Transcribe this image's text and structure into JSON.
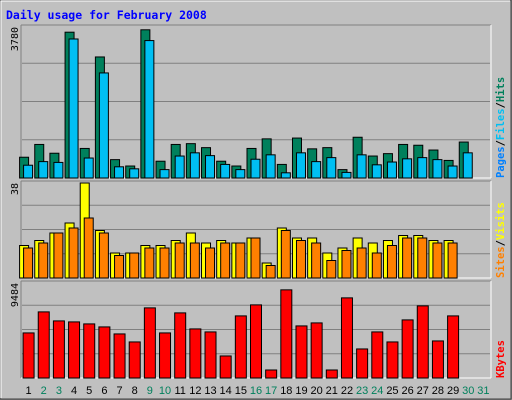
{
  "chart_data": [
    {
      "type": "bar",
      "title": "Daily usage for February 2008",
      "ymax_label": "3780",
      "ylim": [
        0,
        3780
      ],
      "categories": [
        "1",
        "2",
        "3",
        "4",
        "5",
        "6",
        "7",
        "8",
        "9",
        "10",
        "11",
        "12",
        "13",
        "14",
        "15",
        "16",
        "17",
        "18",
        "19",
        "20",
        "21",
        "22",
        "23",
        "24",
        "25",
        "26",
        "27",
        "28",
        "29",
        "30",
        "31"
      ],
      "series": [
        {
          "name": "Hits",
          "color": "#00805c",
          "values": [
            520,
            840,
            620,
            3650,
            740,
            3030,
            460,
            300,
            3710,
            420,
            840,
            860,
            760,
            420,
            300,
            740,
            980,
            340,
            1000,
            730,
            760,
            210,
            1020,
            550,
            610,
            840,
            820,
            700,
            440,
            900,
            0
          ]
        },
        {
          "name": "Files",
          "color": "#00bff3",
          "values": [
            320,
            410,
            390,
            3480,
            500,
            2630,
            280,
            230,
            3440,
            210,
            550,
            630,
            560,
            340,
            210,
            470,
            580,
            130,
            630,
            410,
            510,
            140,
            580,
            330,
            400,
            480,
            510,
            460,
            300,
            630,
            0
          ]
        }
      ],
      "right_label": [
        "Pages",
        "Files",
        "Hits"
      ]
    },
    {
      "type": "bar",
      "ymax_label": "38",
      "ylim": [
        0,
        38
      ],
      "series": [
        {
          "name": "Visits",
          "color": "#ffff00",
          "values": [
            13,
            15,
            18,
            22,
            38,
            19,
            10,
            10,
            13,
            13,
            15,
            18,
            14,
            15,
            14,
            16,
            6,
            20,
            16,
            16,
            10,
            12,
            16,
            14,
            15,
            17,
            17,
            15,
            15,
            0,
            0
          ]
        },
        {
          "name": "Sites",
          "color": "#ff8000",
          "values": [
            12,
            14,
            18,
            20,
            24,
            18,
            9,
            10,
            12,
            12,
            14,
            14,
            12,
            14,
            14,
            16,
            5,
            19,
            15,
            14,
            7,
            11,
            12,
            10,
            13,
            16,
            16,
            14,
            14,
            0,
            0
          ]
        }
      ],
      "right_label": [
        "Sites",
        "Visits"
      ]
    },
    {
      "type": "bar",
      "ymax_label": "9484",
      "ylim": [
        0,
        9484
      ],
      "series": [
        {
          "name": "KBytes",
          "color": "#ff0000",
          "values": [
            4500,
            6600,
            5700,
            5600,
            5400,
            5100,
            4400,
            3600,
            7000,
            4500,
            6500,
            4900,
            4600,
            2200,
            6200,
            7300,
            800,
            8800,
            5200,
            5500,
            800,
            8000,
            2900,
            4600,
            3600,
            5800,
            7200,
            3700,
            6200,
            0,
            0
          ]
        }
      ],
      "right_label": [
        "KBytes"
      ]
    }
  ],
  "day_labels": {
    "weekday_color": "#000000",
    "weekend_color": "#00805c",
    "weekend_days": [
      2,
      3,
      9,
      10,
      16,
      17,
      23,
      24,
      30,
      31
    ]
  }
}
